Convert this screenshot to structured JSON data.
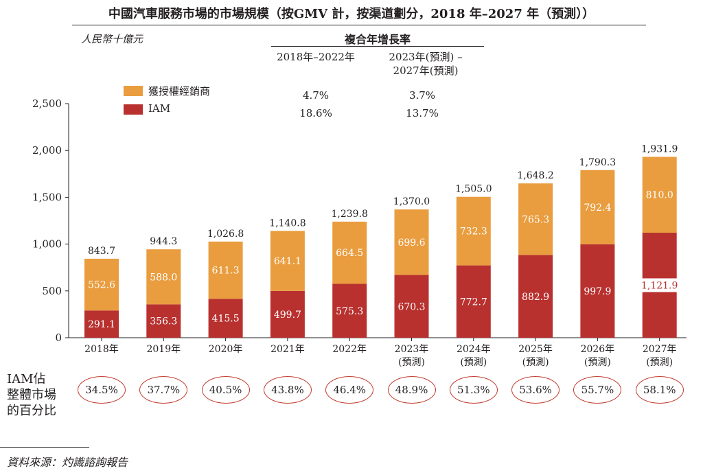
{
  "title": "中國汽車服務市場的市場規模（按GMV 計，按渠道劃分，2018 年–2027 年（預測））",
  "unit_label": "人民幣十億元",
  "cagr": {
    "header": "複合年增長率",
    "period1": "2018年–2022年",
    "period2_line1": "2023年(預測) –",
    "period2_line2": "2027年(預測)",
    "dealer": {
      "p1": "4.7%",
      "p2": "3.7%"
    },
    "iam": {
      "p1": "18.6%",
      "p2": "13.7%"
    }
  },
  "legend": {
    "dealer": "獲授權經銷商",
    "iam": "IAM"
  },
  "colors": {
    "dealer": "#e99d3f",
    "iam": "#b8312f",
    "oval": "#c0392b"
  },
  "pct_label": [
    "IAM佔",
    "整體市場",
    "的百分比"
  ],
  "source": "資料來源：灼識諮詢報告",
  "chart_data": {
    "type": "bar",
    "stacked": true,
    "ylim": [
      0,
      2500
    ],
    "yticks": [
      "0",
      "500",
      "1,000",
      "1,500",
      "2,000",
      "2,500"
    ],
    "ytick_values": [
      0,
      500,
      1000,
      1500,
      2000,
      2500
    ],
    "categories": [
      "2018年",
      "2019年",
      "2020年",
      "2021年",
      "2022年",
      "2023年",
      "2024年",
      "2025年",
      "2026年",
      "2027年"
    ],
    "category_sub": [
      "",
      "",
      "",
      "",
      "",
      "(預測)",
      "(預測)",
      "(預測)",
      "(預測)",
      "(預測)"
    ],
    "series": [
      {
        "name": "IAM",
        "values": [
          291.1,
          356.3,
          415.5,
          499.7,
          575.3,
          670.3,
          772.7,
          882.9,
          997.9,
          1121.9
        ],
        "labels": [
          "291.1",
          "356.3",
          "415.5",
          "499.7",
          "575.3",
          "670.3",
          "772.7",
          "882.9",
          "997.9",
          "1,121.9"
        ]
      },
      {
        "name": "獲授權經銷商",
        "values": [
          552.6,
          588.0,
          611.3,
          641.1,
          664.5,
          699.6,
          732.3,
          765.3,
          792.4,
          810.0
        ],
        "labels": [
          "552.6",
          "588.0",
          "611.3",
          "641.1",
          "664.5",
          "699.6",
          "732.3",
          "765.3",
          "792.4",
          "810.0"
        ]
      }
    ],
    "totals": [
      843.7,
      944.3,
      1026.8,
      1140.8,
      1239.8,
      1370.0,
      1505.0,
      1648.2,
      1790.3,
      1931.9
    ],
    "total_labels": [
      "843.7",
      "944.3",
      "1,026.8",
      "1,140.8",
      "1,239.8",
      "1,370.0",
      "1,505.0",
      "1,648.2",
      "1,790.3",
      "1,931.9"
    ],
    "iam_share": [
      "34.5%",
      "37.7%",
      "40.5%",
      "43.8%",
      "46.4%",
      "48.9%",
      "51.3%",
      "53.6%",
      "55.7%",
      "58.1%"
    ]
  }
}
